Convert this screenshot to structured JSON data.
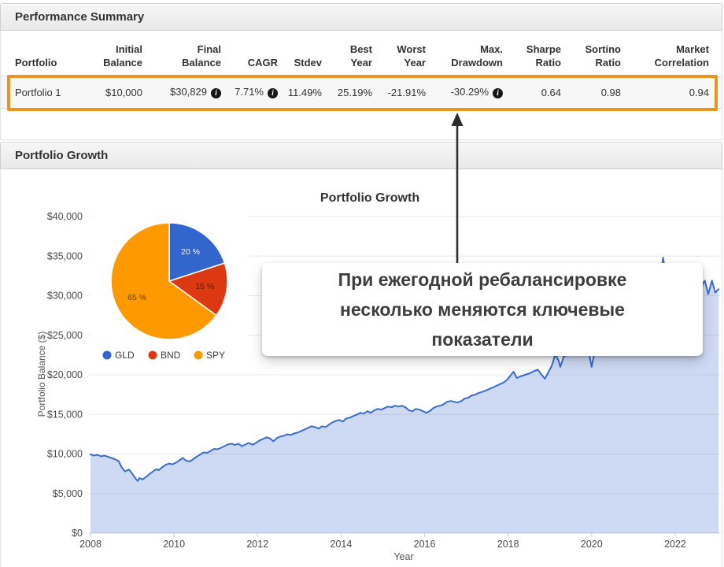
{
  "panels": {
    "summary": {
      "title": "Performance Summary"
    },
    "growth": {
      "title": "Portfolio Growth"
    }
  },
  "table": {
    "columns": [
      {
        "lines": [
          "Portfolio"
        ],
        "align": "left"
      },
      {
        "lines": [
          "Initial",
          "Balance"
        ]
      },
      {
        "lines": [
          "Final",
          "Balance"
        ]
      },
      {
        "lines": [
          "CAGR"
        ]
      },
      {
        "lines": [
          "Stdev"
        ]
      },
      {
        "lines": [
          "Best",
          "Year"
        ]
      },
      {
        "lines": [
          "Worst",
          "Year"
        ]
      },
      {
        "lines": [
          "Max.",
          "Drawdown"
        ]
      },
      {
        "lines": [
          "Sharpe",
          "Ratio"
        ]
      },
      {
        "lines": [
          "Sortino",
          "Ratio"
        ]
      },
      {
        "lines": [
          "Market",
          "Correlation"
        ]
      }
    ],
    "rows": [
      {
        "cells": [
          {
            "text": "Portfolio 1",
            "align": "left"
          },
          {
            "text": "$10,000"
          },
          {
            "text": "$30,829",
            "info": true
          },
          {
            "text": "7.71%",
            "info": true
          },
          {
            "text": "11.49%"
          },
          {
            "text": "25.19%"
          },
          {
            "text": "-21.91%"
          },
          {
            "text": "-30.29%",
            "info": true
          },
          {
            "text": "0.64"
          },
          {
            "text": "0.98"
          },
          {
            "text": "0.94"
          }
        ]
      }
    ]
  },
  "annotation": {
    "lines": [
      "При ежегодной ребалансировке",
      "несколько меняются ключевые",
      "показатели"
    ]
  },
  "colors": {
    "highlight": "#E8941F",
    "line_blue": "#3A6CD4",
    "area_fill": "rgba(58,108,212,0.25)",
    "pie_blue": "#3366CC",
    "pie_red": "#DC3912",
    "pie_orange": "#FF9900",
    "grid": "#e8e8e8",
    "axis_text": "#4a4a4a"
  },
  "chart_data": [
    {
      "type": "area",
      "title": "Portfolio Growth",
      "xlabel": "Year",
      "ylabel": "Portfolio Balance ($)",
      "xlim": [
        2008,
        2023.1
      ],
      "ylim": [
        0,
        40000
      ],
      "grid": true,
      "x_ticks": [
        2008,
        2010,
        2012,
        2014,
        2016,
        2018,
        2020,
        2022
      ],
      "x_tick_labels": [
        "2008",
        "2010",
        "2012",
        "2014",
        "2016",
        "2018",
        "2020",
        "2022"
      ],
      "y_ticks": [
        0,
        5000,
        10000,
        15000,
        20000,
        25000,
        30000,
        35000,
        40000
      ],
      "y_tick_labels": [
        "$0",
        "$5,000",
        "$10,000",
        "$15,000",
        "$20,000",
        "$25,000",
        "$30,000",
        "$35,000",
        "$40,000"
      ],
      "series": [
        {
          "name": "Portfolio 1",
          "points": [
            [
              2008.0,
              9950
            ],
            [
              2008.08,
              9800
            ],
            [
              2008.17,
              9900
            ],
            [
              2008.25,
              9700
            ],
            [
              2008.33,
              9800
            ],
            [
              2008.42,
              9650
            ],
            [
              2008.5,
              9500
            ],
            [
              2008.58,
              9350
            ],
            [
              2008.67,
              9100
            ],
            [
              2008.75,
              8300
            ],
            [
              2008.83,
              7800
            ],
            [
              2008.92,
              8050
            ],
            [
              2009.0,
              7500
            ],
            [
              2009.08,
              6900
            ],
            [
              2009.13,
              6600
            ],
            [
              2009.17,
              6950
            ],
            [
              2009.25,
              6800
            ],
            [
              2009.33,
              7100
            ],
            [
              2009.42,
              7500
            ],
            [
              2009.5,
              7800
            ],
            [
              2009.58,
              8100
            ],
            [
              2009.63,
              7950
            ],
            [
              2009.71,
              8300
            ],
            [
              2009.79,
              8600
            ],
            [
              2009.88,
              8800
            ],
            [
              2009.96,
              8700
            ],
            [
              2010.04,
              8900
            ],
            [
              2010.13,
              9200
            ],
            [
              2010.21,
              9500
            ],
            [
              2010.29,
              9150
            ],
            [
              2010.38,
              9050
            ],
            [
              2010.46,
              9350
            ],
            [
              2010.54,
              9650
            ],
            [
              2010.63,
              9950
            ],
            [
              2010.71,
              10200
            ],
            [
              2010.79,
              10150
            ],
            [
              2010.88,
              10400
            ],
            [
              2010.96,
              10650
            ],
            [
              2011.04,
              10600
            ],
            [
              2011.13,
              10800
            ],
            [
              2011.21,
              11000
            ],
            [
              2011.29,
              11200
            ],
            [
              2011.38,
              11300
            ],
            [
              2011.46,
              11150
            ],
            [
              2011.54,
              11300
            ],
            [
              2011.63,
              11000
            ],
            [
              2011.71,
              11200
            ],
            [
              2011.79,
              11400
            ],
            [
              2011.88,
              11150
            ],
            [
              2011.96,
              11400
            ],
            [
              2012.04,
              11700
            ],
            [
              2012.13,
              11900
            ],
            [
              2012.21,
              12100
            ],
            [
              2012.29,
              12000
            ],
            [
              2012.38,
              11600
            ],
            [
              2012.46,
              12000
            ],
            [
              2012.54,
              12200
            ],
            [
              2012.63,
              12300
            ],
            [
              2012.71,
              12500
            ],
            [
              2012.79,
              12400
            ],
            [
              2012.88,
              12600
            ],
            [
              2012.96,
              12700
            ],
            [
              2013.04,
              12900
            ],
            [
              2013.13,
              13100
            ],
            [
              2013.21,
              13300
            ],
            [
              2013.29,
              13500
            ],
            [
              2013.38,
              13400
            ],
            [
              2013.46,
              13200
            ],
            [
              2013.54,
              13500
            ],
            [
              2013.63,
              13400
            ],
            [
              2013.71,
              13700
            ],
            [
              2013.79,
              14000
            ],
            [
              2013.88,
              14200
            ],
            [
              2013.96,
              14300
            ],
            [
              2014.04,
              14100
            ],
            [
              2014.13,
              14500
            ],
            [
              2014.21,
              14600
            ],
            [
              2014.29,
              14800
            ],
            [
              2014.38,
              15000
            ],
            [
              2014.46,
              15200
            ],
            [
              2014.54,
              15100
            ],
            [
              2014.63,
              15400
            ],
            [
              2014.71,
              15200
            ],
            [
              2014.79,
              15500
            ],
            [
              2014.88,
              15700
            ],
            [
              2014.96,
              15600
            ],
            [
              2015.04,
              15800
            ],
            [
              2015.13,
              16000
            ],
            [
              2015.21,
              15900
            ],
            [
              2015.29,
              16100
            ],
            [
              2015.38,
              16000
            ],
            [
              2015.46,
              16100
            ],
            [
              2015.54,
              15900
            ],
            [
              2015.63,
              15500
            ],
            [
              2015.71,
              15400
            ],
            [
              2015.79,
              15700
            ],
            [
              2015.88,
              15600
            ],
            [
              2015.96,
              15400
            ],
            [
              2016.04,
              15200
            ],
            [
              2016.13,
              15450
            ],
            [
              2016.21,
              15800
            ],
            [
              2016.29,
              16000
            ],
            [
              2016.38,
              16100
            ],
            [
              2016.46,
              16300
            ],
            [
              2016.54,
              16600
            ],
            [
              2016.63,
              16700
            ],
            [
              2016.71,
              16600
            ],
            [
              2016.79,
              16500
            ],
            [
              2016.88,
              16700
            ],
            [
              2016.96,
              17000
            ],
            [
              2017.04,
              17100
            ],
            [
              2017.13,
              17400
            ],
            [
              2017.21,
              17500
            ],
            [
              2017.29,
              17700
            ],
            [
              2017.38,
              17850
            ],
            [
              2017.46,
              18000
            ],
            [
              2017.54,
              18200
            ],
            [
              2017.63,
              18400
            ],
            [
              2017.71,
              18600
            ],
            [
              2017.79,
              18800
            ],
            [
              2017.88,
              19000
            ],
            [
              2017.96,
              19300
            ],
            [
              2018.04,
              19800
            ],
            [
              2018.13,
              20400
            ],
            [
              2018.21,
              19600
            ],
            [
              2018.29,
              19800
            ],
            [
              2018.38,
              19950
            ],
            [
              2018.46,
              20100
            ],
            [
              2018.54,
              20250
            ],
            [
              2018.63,
              20500
            ],
            [
              2018.71,
              20650
            ],
            [
              2018.79,
              20100
            ],
            [
              2018.88,
              19500
            ],
            [
              2018.96,
              20300
            ],
            [
              2019.04,
              21100
            ],
            [
              2019.13,
              22600
            ],
            [
              2019.21,
              21800
            ],
            [
              2019.25,
              21000
            ],
            [
              2019.33,
              22300
            ],
            [
              2019.42,
              22600
            ],
            [
              2019.5,
              23000
            ],
            [
              2019.58,
              22800
            ],
            [
              2019.67,
              23400
            ],
            [
              2019.75,
              23600
            ],
            [
              2019.83,
              23900
            ],
            [
              2019.92,
              23200
            ],
            [
              2020.0,
              21000
            ],
            [
              2020.08,
              23200
            ],
            [
              2020.17,
              24000
            ],
            [
              2020.25,
              24400
            ],
            [
              2020.33,
              24100
            ],
            [
              2020.42,
              24700
            ],
            [
              2020.5,
              25200
            ],
            [
              2020.58,
              25900
            ],
            [
              2020.67,
              25700
            ],
            [
              2020.75,
              25500
            ],
            [
              2020.83,
              26800
            ],
            [
              2020.92,
              27500
            ],
            [
              2021.0,
              27600
            ],
            [
              2021.08,
              28000
            ],
            [
              2021.17,
              28600
            ],
            [
              2021.25,
              29400
            ],
            [
              2021.33,
              30000
            ],
            [
              2021.42,
              30400
            ],
            [
              2021.5,
              30900
            ],
            [
              2021.58,
              31400
            ],
            [
              2021.67,
              33200
            ],
            [
              2021.71,
              34800
            ],
            [
              2021.75,
              33400
            ],
            [
              2021.83,
              32000
            ],
            [
              2021.92,
              32600
            ],
            [
              2022.0,
              31600
            ],
            [
              2022.08,
              30400
            ],
            [
              2022.17,
              31100
            ],
            [
              2022.25,
              29500
            ],
            [
              2022.33,
              28900
            ],
            [
              2022.42,
              28000
            ],
            [
              2022.5,
              28800
            ],
            [
              2022.58,
              30100
            ],
            [
              2022.67,
              31600
            ],
            [
              2022.71,
              31900
            ],
            [
              2022.79,
              30200
            ],
            [
              2022.88,
              31900
            ],
            [
              2022.96,
              30400
            ],
            [
              2023.04,
              30829
            ]
          ]
        }
      ]
    },
    {
      "type": "pie",
      "legend_position": "bottom",
      "slices": [
        {
          "label": "GLD",
          "pct": 20,
          "color": "#3366CC",
          "label_text": "20 %",
          "label_color": "rgba(255,255,255,0.92)"
        },
        {
          "label": "BND",
          "pct": 15,
          "color": "#DC3912",
          "label_text": "15 %",
          "label_color": "rgba(40,25,15,0.8)"
        },
        {
          "label": "SPY",
          "pct": 65,
          "color": "#FF9900",
          "label_text": "65 %",
          "label_color": "rgba(60,40,10,0.8)"
        }
      ]
    }
  ]
}
